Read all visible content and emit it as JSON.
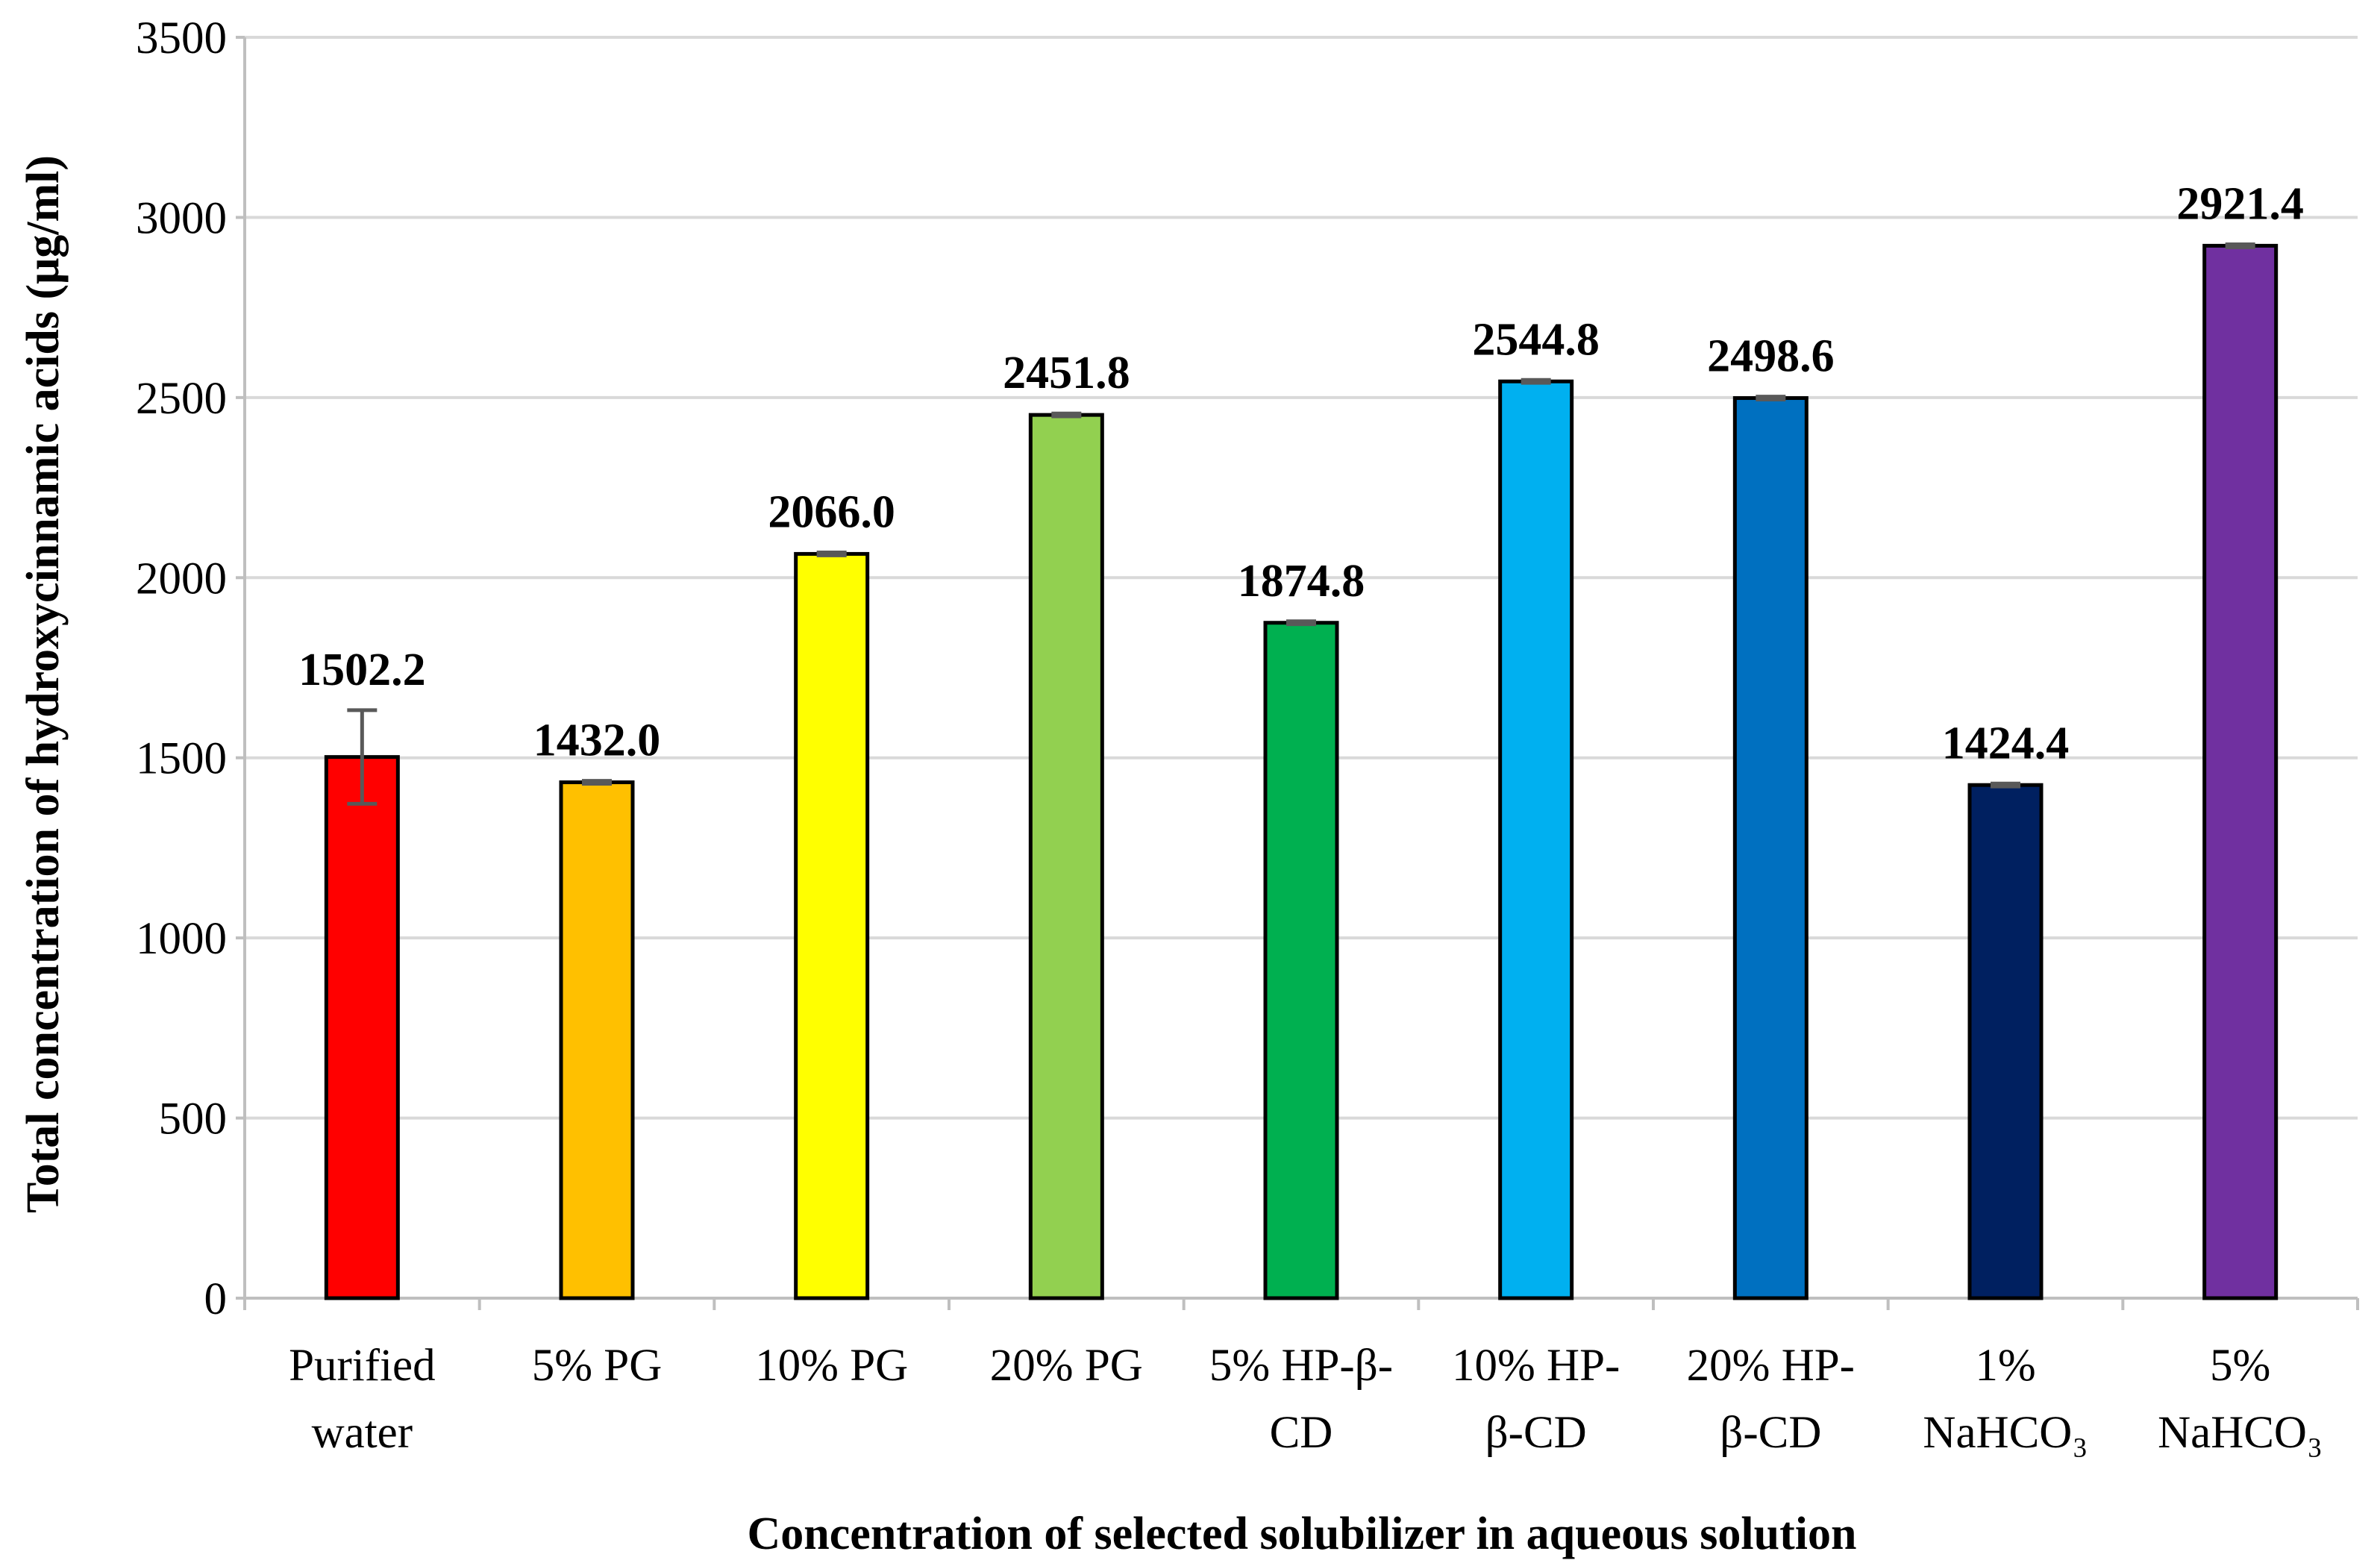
{
  "chart_data": {
    "type": "bar",
    "title": "",
    "xlabel": "Concentration of selected solubilizer in aqueous solution",
    "ylabel": "Total concentration of hydroxycinnamic acids (μg/ml)",
    "ylim": [
      0,
      3500
    ],
    "yticks": [
      0,
      500,
      1000,
      1500,
      2000,
      2500,
      3000,
      3500
    ],
    "ytick_labels": [
      "0",
      "500",
      "1000",
      "1500",
      "2000",
      "2500",
      "3000",
      "3500"
    ],
    "grid": "horizontal",
    "categories": [
      [
        "Purified",
        "water"
      ],
      [
        "5% PG"
      ],
      [
        "10% PG"
      ],
      [
        "20% PG"
      ],
      [
        "5% HP-β-",
        "CD"
      ],
      [
        "10% HP-",
        "β-CD"
      ],
      [
        "20% HP-",
        "β-CD"
      ],
      [
        "1%",
        "NaHCO₃"
      ],
      [
        "5%",
        "NaHCO₃"
      ]
    ],
    "values": [
      1502.2,
      1432.0,
      2066.0,
      2451.8,
      1874.8,
      2544.8,
      2498.6,
      1424.4,
      2921.4
    ],
    "data_labels": [
      "1502.2",
      "1432.0",
      "2066.0",
      "2451.8",
      "1874.8",
      "2544.8",
      "2498.6",
      "1424.4",
      "2921.4"
    ],
    "errors": [
      130,
      4,
      4,
      4,
      4,
      4,
      4,
      4,
      4
    ],
    "colors": [
      "#FF0000",
      "#FFC000",
      "#FFFF00",
      "#92D050",
      "#00B050",
      "#00B0F0",
      "#0070C0",
      "#002060",
      "#7030A0"
    ]
  }
}
